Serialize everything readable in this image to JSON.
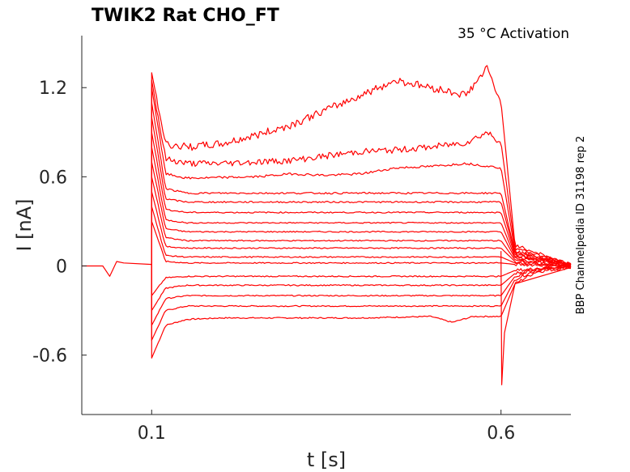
{
  "chart_data": {
    "type": "line",
    "title": "TWIK2  Rat  CHO_FT",
    "subtitle": "35 °C  Activation",
    "side_note": "BBP Channelpedia ID 31198 rep 2",
    "xlabel": "t [s]",
    "ylabel": "I [nA]",
    "xlim": [
      0.0,
      0.7
    ],
    "ylim": [
      -1.0,
      1.55
    ],
    "x_ticks": [
      {
        "value": 0.1,
        "label": "0.1"
      },
      {
        "value": 0.6,
        "label": "0.6"
      }
    ],
    "y_ticks": [
      {
        "value": -0.6,
        "label": "-0.6"
      },
      {
        "value": 0,
        "label": "0"
      },
      {
        "value": 0.6,
        "label": "0.6"
      },
      {
        "value": 1.2,
        "label": "1.2"
      }
    ],
    "grid": false,
    "legend": "none",
    "trace_color": "#ff0000",
    "step_on": 0.1,
    "step_off": 0.6,
    "series": [
      {
        "values": [
          [
            0.1,
            -0.62
          ],
          [
            0.12,
            -0.4
          ],
          [
            0.15,
            -0.36
          ],
          [
            0.2,
            -0.35
          ],
          [
            0.3,
            -0.35
          ],
          [
            0.4,
            -0.35
          ],
          [
            0.5,
            -0.34
          ],
          [
            0.53,
            -0.38
          ],
          [
            0.56,
            -0.34
          ],
          [
            0.6,
            -0.34
          ],
          [
            0.62,
            -0.12
          ],
          [
            0.65,
            -0.04
          ],
          [
            0.7,
            -0.01
          ]
        ]
      },
      {
        "values": [
          [
            0.1,
            -0.5
          ],
          [
            0.12,
            -0.3
          ],
          [
            0.15,
            -0.27
          ],
          [
            0.2,
            -0.27
          ],
          [
            0.3,
            -0.27
          ],
          [
            0.4,
            -0.27
          ],
          [
            0.5,
            -0.27
          ],
          [
            0.6,
            -0.27
          ],
          [
            0.62,
            -0.09
          ],
          [
            0.65,
            -0.03
          ],
          [
            0.7,
            -0.01
          ]
        ]
      },
      {
        "values": [
          [
            0.1,
            -0.4
          ],
          [
            0.12,
            -0.22
          ],
          [
            0.15,
            -0.2
          ],
          [
            0.3,
            -0.2
          ],
          [
            0.5,
            -0.2
          ],
          [
            0.6,
            -0.2
          ],
          [
            0.62,
            -0.07
          ],
          [
            0.65,
            -0.02
          ],
          [
            0.7,
            0.0
          ]
        ]
      },
      {
        "values": [
          [
            0.1,
            -0.3
          ],
          [
            0.12,
            -0.15
          ],
          [
            0.15,
            -0.13
          ],
          [
            0.3,
            -0.13
          ],
          [
            0.5,
            -0.13
          ],
          [
            0.6,
            -0.13
          ],
          [
            0.62,
            -0.05
          ],
          [
            0.65,
            -0.02
          ],
          [
            0.7,
            0.0
          ]
        ]
      },
      {
        "values": [
          [
            0.1,
            -0.2
          ],
          [
            0.12,
            -0.08
          ],
          [
            0.15,
            -0.07
          ],
          [
            0.3,
            -0.07
          ],
          [
            0.5,
            -0.07
          ],
          [
            0.6,
            -0.07
          ],
          [
            0.62,
            -0.03
          ],
          [
            0.7,
            0.0
          ]
        ]
      },
      {
        "values": [
          [
            0.1,
            0.3
          ],
          [
            0.12,
            0.03
          ],
          [
            0.15,
            0.02
          ],
          [
            0.3,
            0.02
          ],
          [
            0.5,
            0.02
          ],
          [
            0.6,
            0.02
          ],
          [
            0.62,
            0.01
          ],
          [
            0.7,
            0.0
          ]
        ]
      },
      {
        "values": [
          [
            0.1,
            0.4
          ],
          [
            0.12,
            0.07
          ],
          [
            0.15,
            0.06
          ],
          [
            0.3,
            0.06
          ],
          [
            0.5,
            0.06
          ],
          [
            0.6,
            0.06
          ],
          [
            0.62,
            0.02
          ],
          [
            0.7,
            0.0
          ]
        ]
      },
      {
        "values": [
          [
            0.1,
            0.5
          ],
          [
            0.12,
            0.13
          ],
          [
            0.15,
            0.12
          ],
          [
            0.3,
            0.12
          ],
          [
            0.5,
            0.12
          ],
          [
            0.6,
            0.12
          ],
          [
            0.62,
            0.03
          ],
          [
            0.7,
            0.0
          ]
        ]
      },
      {
        "values": [
          [
            0.1,
            0.6
          ],
          [
            0.12,
            0.19
          ],
          [
            0.15,
            0.17
          ],
          [
            0.3,
            0.17
          ],
          [
            0.5,
            0.17
          ],
          [
            0.6,
            0.17
          ],
          [
            0.62,
            0.04
          ],
          [
            0.7,
            0.0
          ]
        ]
      },
      {
        "values": [
          [
            0.1,
            0.7
          ],
          [
            0.12,
            0.25
          ],
          [
            0.15,
            0.23
          ],
          [
            0.3,
            0.23
          ],
          [
            0.5,
            0.23
          ],
          [
            0.6,
            0.23
          ],
          [
            0.62,
            0.05
          ],
          [
            0.7,
            0.01
          ]
        ]
      },
      {
        "values": [
          [
            0.1,
            0.8
          ],
          [
            0.12,
            0.31
          ],
          [
            0.15,
            0.29
          ],
          [
            0.3,
            0.29
          ],
          [
            0.5,
            0.29
          ],
          [
            0.6,
            0.29
          ],
          [
            0.62,
            0.06
          ],
          [
            0.7,
            0.01
          ]
        ]
      },
      {
        "values": [
          [
            0.1,
            0.9
          ],
          [
            0.12,
            0.38
          ],
          [
            0.15,
            0.36
          ],
          [
            0.3,
            0.36
          ],
          [
            0.5,
            0.36
          ],
          [
            0.6,
            0.36
          ],
          [
            0.62,
            0.07
          ],
          [
            0.7,
            0.01
          ]
        ]
      },
      {
        "values": [
          [
            0.1,
            1.0
          ],
          [
            0.12,
            0.45
          ],
          [
            0.15,
            0.43
          ],
          [
            0.3,
            0.43
          ],
          [
            0.5,
            0.43
          ],
          [
            0.6,
            0.43
          ],
          [
            0.62,
            0.08
          ],
          [
            0.7,
            0.01
          ]
        ]
      },
      {
        "values": [
          [
            0.1,
            1.1
          ],
          [
            0.12,
            0.52
          ],
          [
            0.15,
            0.49
          ],
          [
            0.3,
            0.49
          ],
          [
            0.5,
            0.49
          ],
          [
            0.6,
            0.49
          ],
          [
            0.62,
            0.09
          ],
          [
            0.7,
            0.01
          ]
        ]
      },
      {
        "values": [
          [
            0.1,
            1.2
          ],
          [
            0.12,
            0.62
          ],
          [
            0.15,
            0.59
          ],
          [
            0.25,
            0.6
          ],
          [
            0.3,
            0.62
          ],
          [
            0.35,
            0.61
          ],
          [
            0.4,
            0.62
          ],
          [
            0.45,
            0.66
          ],
          [
            0.5,
            0.67
          ],
          [
            0.55,
            0.69
          ],
          [
            0.6,
            0.66
          ],
          [
            0.62,
            0.1
          ],
          [
            0.7,
            0.01
          ]
        ]
      },
      {
        "values": [
          [
            0.1,
            1.25
          ],
          [
            0.12,
            0.72
          ],
          [
            0.15,
            0.69
          ],
          [
            0.2,
            0.69
          ],
          [
            0.25,
            0.7
          ],
          [
            0.3,
            0.71
          ],
          [
            0.35,
            0.74
          ],
          [
            0.4,
            0.77
          ],
          [
            0.45,
            0.78
          ],
          [
            0.5,
            0.8
          ],
          [
            0.55,
            0.83
          ],
          [
            0.58,
            0.9
          ],
          [
            0.6,
            0.83
          ],
          [
            0.62,
            0.12
          ],
          [
            0.7,
            0.01
          ]
        ]
      },
      {
        "values": [
          [
            0.1,
            1.3
          ],
          [
            0.12,
            0.82
          ],
          [
            0.15,
            0.8
          ],
          [
            0.2,
            0.82
          ],
          [
            0.25,
            0.88
          ],
          [
            0.3,
            0.95
          ],
          [
            0.35,
            1.05
          ],
          [
            0.4,
            1.15
          ],
          [
            0.45,
            1.25
          ],
          [
            0.5,
            1.2
          ],
          [
            0.55,
            1.15
          ],
          [
            0.58,
            1.33
          ],
          [
            0.6,
            1.1
          ],
          [
            0.62,
            0.14
          ],
          [
            0.7,
            0.01
          ]
        ]
      }
    ],
    "pre_pulse": [
      [
        0.0,
        0.0
      ],
      [
        0.03,
        0.0
      ],
      [
        0.04,
        -0.07
      ],
      [
        0.045,
        -0.02
      ],
      [
        0.05,
        0.03
      ],
      [
        0.06,
        0.02
      ],
      [
        0.1,
        0.01
      ]
    ],
    "off_minimum": [
      [
        0.6,
        0.1
      ],
      [
        0.601,
        -0.8
      ],
      [
        0.605,
        -0.45
      ],
      [
        0.62,
        -0.12
      ],
      [
        0.7,
        -0.01
      ]
    ]
  }
}
